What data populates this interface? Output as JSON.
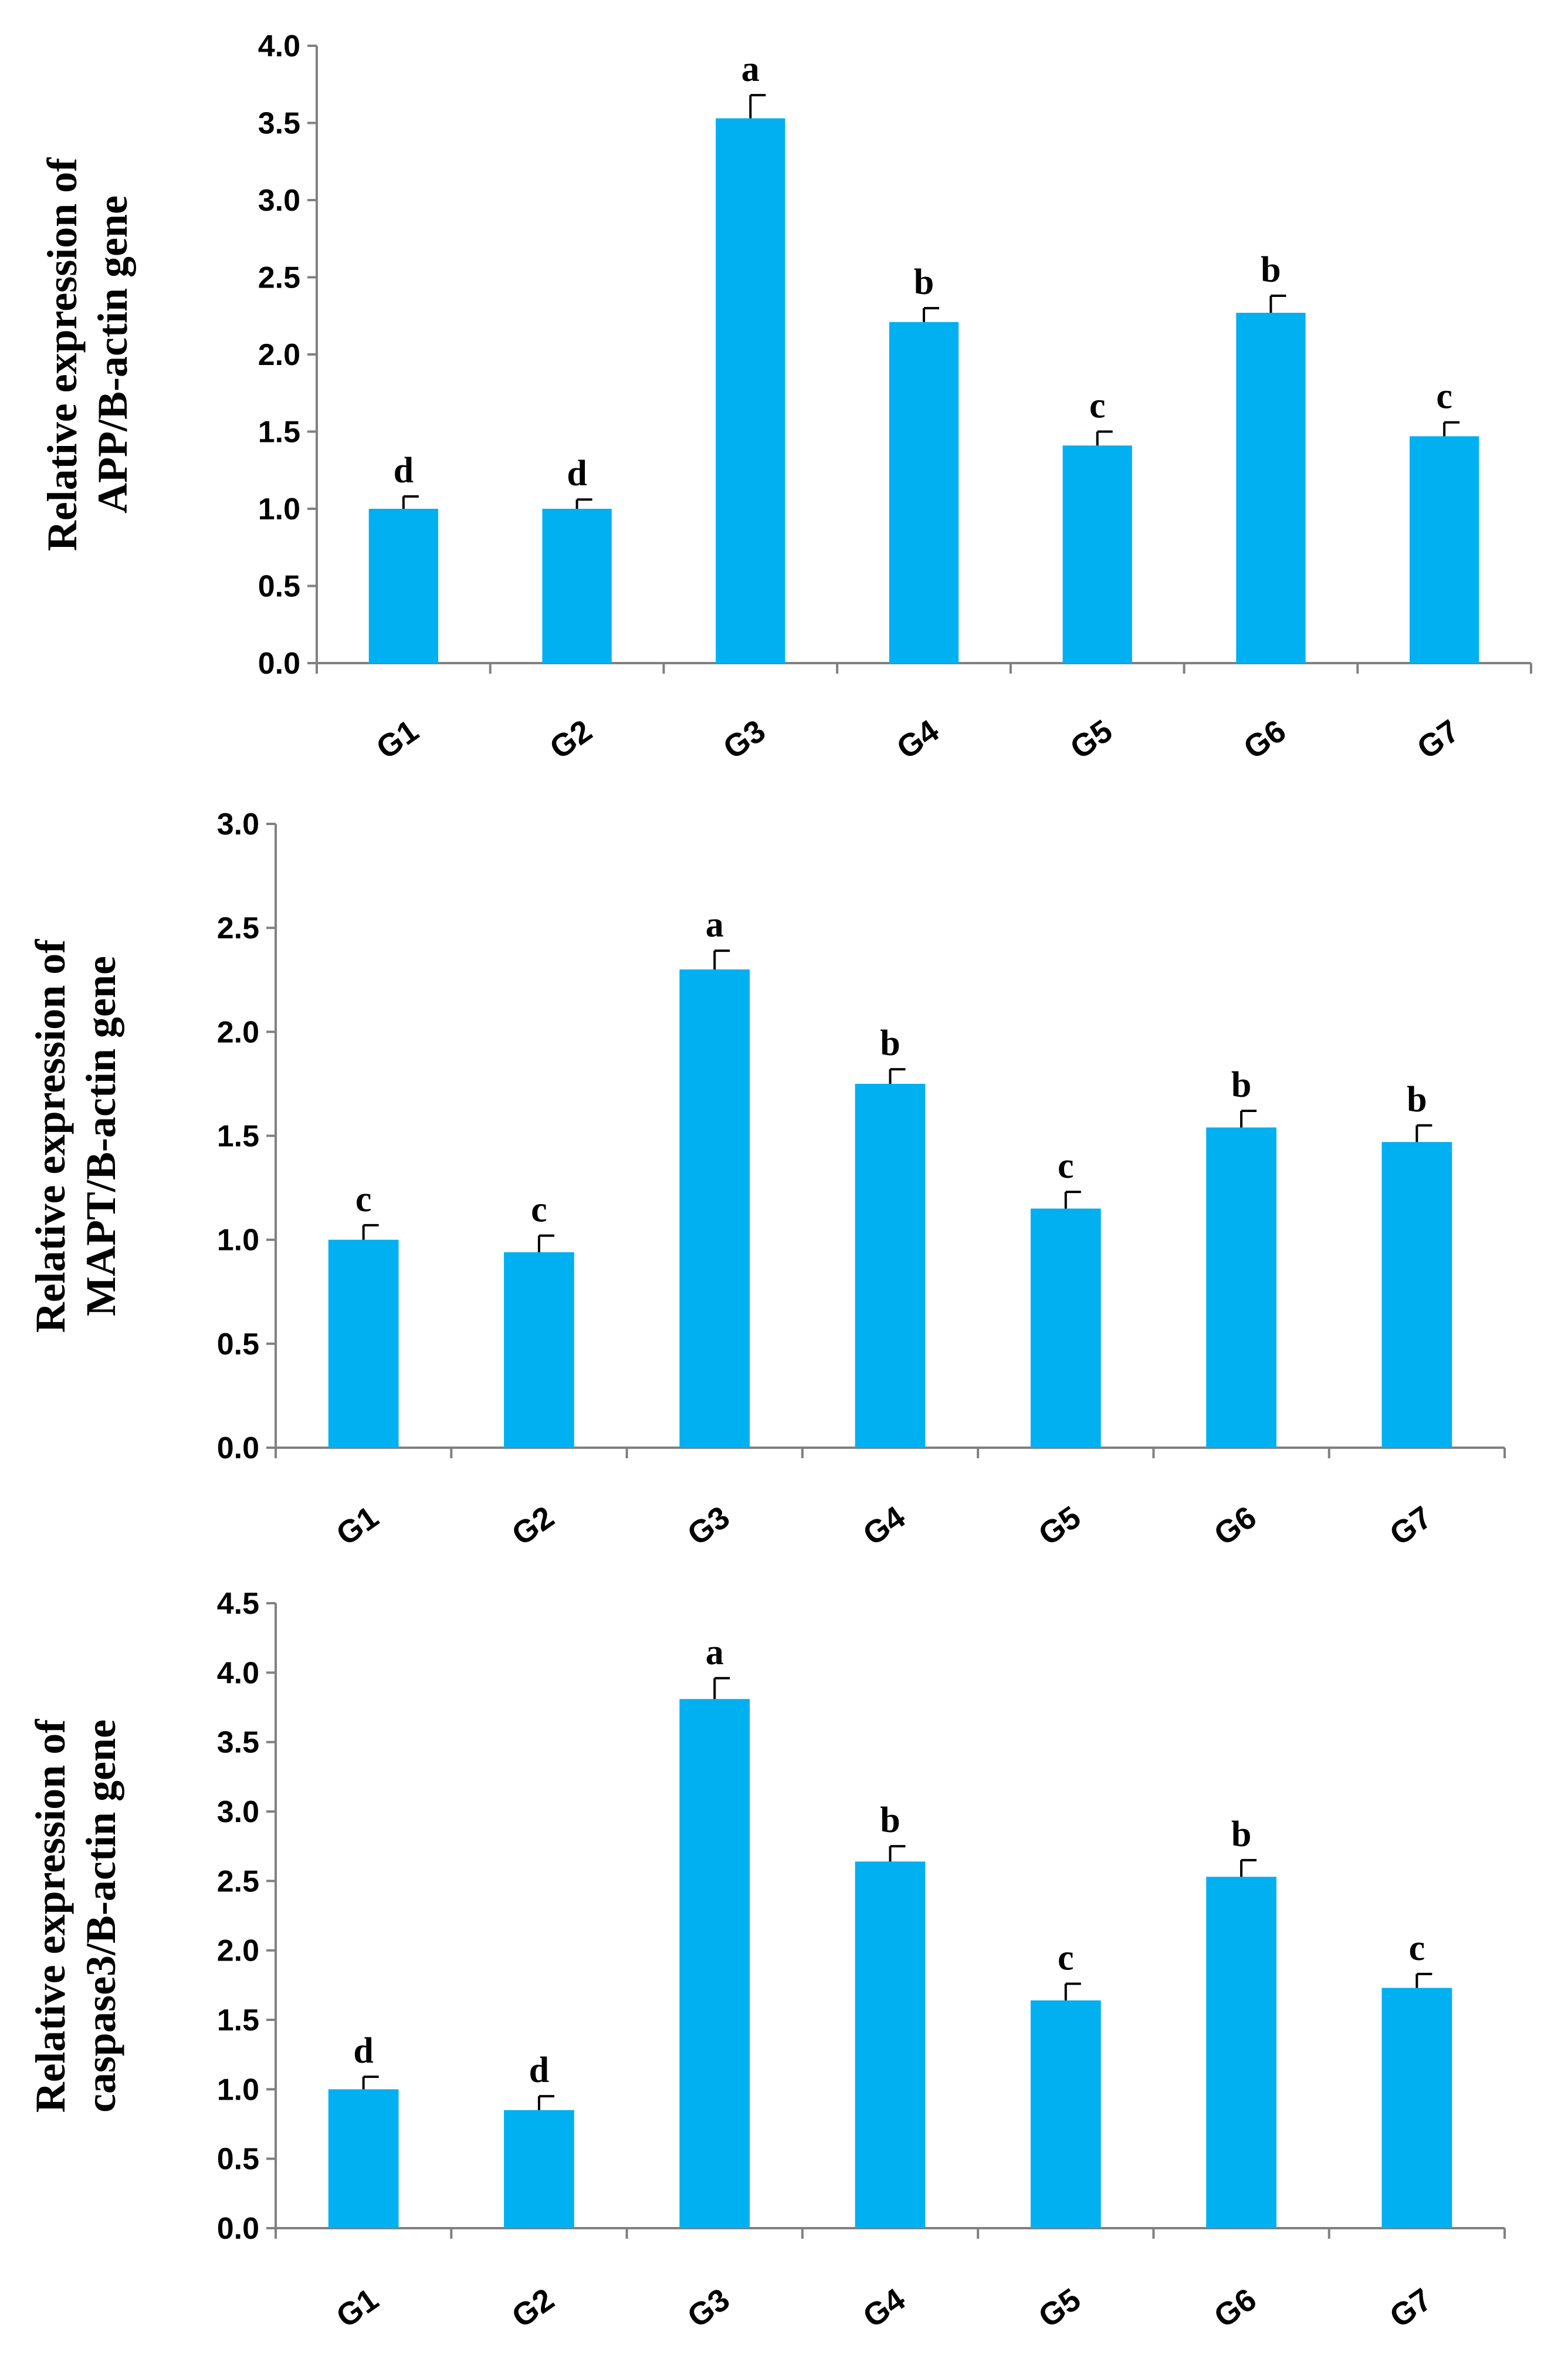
{
  "figure": {
    "bar_color": "#00B0F0",
    "axis_color": "#808080"
  },
  "chart_data": [
    {
      "type": "bar",
      "title": "",
      "xlabel": "",
      "ylabel_lines": [
        "Relative expression of",
        "APP/B-actin gene"
      ],
      "categories": [
        "G1",
        "G2",
        "G3",
        "G4",
        "G5",
        "G6",
        "G7"
      ],
      "values": [
        1.0,
        1.0,
        3.53,
        2.21,
        1.41,
        2.27,
        1.47
      ],
      "errors": [
        0.08,
        0.06,
        0.15,
        0.09,
        0.09,
        0.11,
        0.09
      ],
      "significance": [
        "d",
        "d",
        "a",
        "b",
        "c",
        "b",
        "c"
      ],
      "ylim": [
        0,
        4.0
      ],
      "yticks": [
        "0.0",
        "0.5",
        "1.0",
        "1.5",
        "2.0",
        "2.5",
        "3.0",
        "3.5",
        "4.0"
      ],
      "grid": false
    },
    {
      "type": "bar",
      "title": "",
      "xlabel": "",
      "ylabel_lines": [
        "Relative expression of",
        "MAPT/B-actin gene"
      ],
      "categories": [
        "G1",
        "G2",
        "G3",
        "G4",
        "G5",
        "G6",
        "G7"
      ],
      "values": [
        1.0,
        0.94,
        2.3,
        1.75,
        1.15,
        1.54,
        1.47
      ],
      "errors": [
        0.07,
        0.08,
        0.09,
        0.07,
        0.08,
        0.08,
        0.08
      ],
      "significance": [
        "c",
        "c",
        "a",
        "b",
        "c",
        "b",
        "b"
      ],
      "ylim": [
        0,
        3.0
      ],
      "yticks": [
        "0.0",
        "0.5",
        "1.0",
        "1.5",
        "2.0",
        "2.5",
        "3.0"
      ],
      "grid": false
    },
    {
      "type": "bar",
      "title": "",
      "xlabel": "",
      "ylabel_lines": [
        "Relative expression of",
        "caspase3/B-actin gene"
      ],
      "categories": [
        "G1",
        "G2",
        "G3",
        "G4",
        "G5",
        "G6",
        "G7"
      ],
      "values": [
        1.0,
        0.85,
        3.81,
        2.64,
        1.64,
        2.53,
        1.73
      ],
      "errors": [
        0.09,
        0.1,
        0.15,
        0.11,
        0.12,
        0.12,
        0.1
      ],
      "significance": [
        "d",
        "d",
        "a",
        "b",
        "c",
        "b",
        "c"
      ],
      "ylim": [
        0,
        4.5
      ],
      "yticks": [
        "0.0",
        "0.5",
        "1.0",
        "1.5",
        "2.0",
        "2.5",
        "3.0",
        "3.5",
        "4.0",
        "4.5"
      ],
      "grid": false
    }
  ]
}
